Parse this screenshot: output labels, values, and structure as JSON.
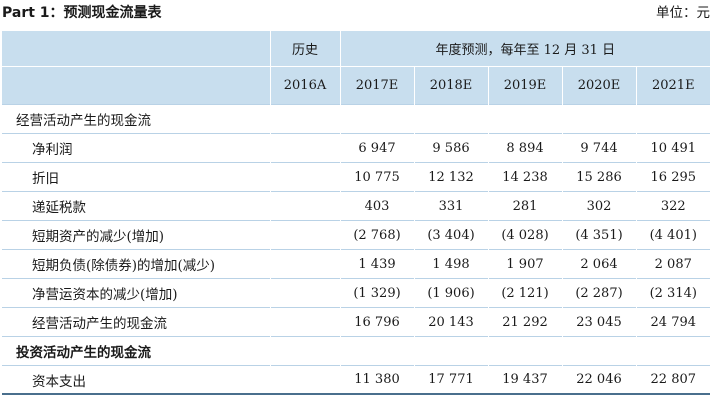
{
  "page_title": "Part 1：预测现金流量表",
  "unit_note": "单位：元",
  "header": {
    "history_label": "历史",
    "forecast_label": "年度预测，每年至 12 月 31 日",
    "years": [
      "2016A",
      "2017E",
      "2018E",
      "2019E",
      "2020E",
      "2021E"
    ]
  },
  "rows": [
    {
      "label": "经营活动产生的现金流",
      "values": [
        "",
        "",
        "",
        "",
        "",
        ""
      ]
    },
    {
      "label": "净利润",
      "values": [
        "",
        "6 947",
        "9 586",
        "8 894",
        "9 744",
        "10 491"
      ]
    },
    {
      "label": "折旧",
      "values": [
        "",
        "10 775",
        "12 132",
        "14 238",
        "15 286",
        "16 295"
      ]
    },
    {
      "label": "递延税款",
      "values": [
        "",
        "403",
        "331",
        "281",
        "302",
        "322"
      ]
    },
    {
      "label": "短期资产的减少(增加)",
      "values": [
        "",
        "(2 768)",
        "(3 404)",
        "(4 028)",
        "(4 351)",
        "(4 401)"
      ]
    },
    {
      "label": "短期负债(除债券)的增加(减少)",
      "values": [
        "",
        "1 439",
        "1 498",
        "1 907",
        "2 064",
        "2 087"
      ]
    },
    {
      "label": "净营运资本的减少(增加)",
      "values": [
        "",
        "(1 329)",
        "(1 906)",
        "(2 121)",
        "(2 287)",
        "(2 314)"
      ]
    },
    {
      "label": "经营活动产生的现金流",
      "values": [
        "",
        "16 796",
        "20 143",
        "21 292",
        "23 045",
        "24 794"
      ]
    },
    {
      "label": "投资活动产生的现金流",
      "values": [
        "",
        "",
        "",
        "",
        "",
        ""
      ]
    },
    {
      "label": "资本支出",
      "values": [
        "",
        "11 380",
        "17 771",
        "19 437",
        "22 046",
        "22 807"
      ]
    }
  ]
}
